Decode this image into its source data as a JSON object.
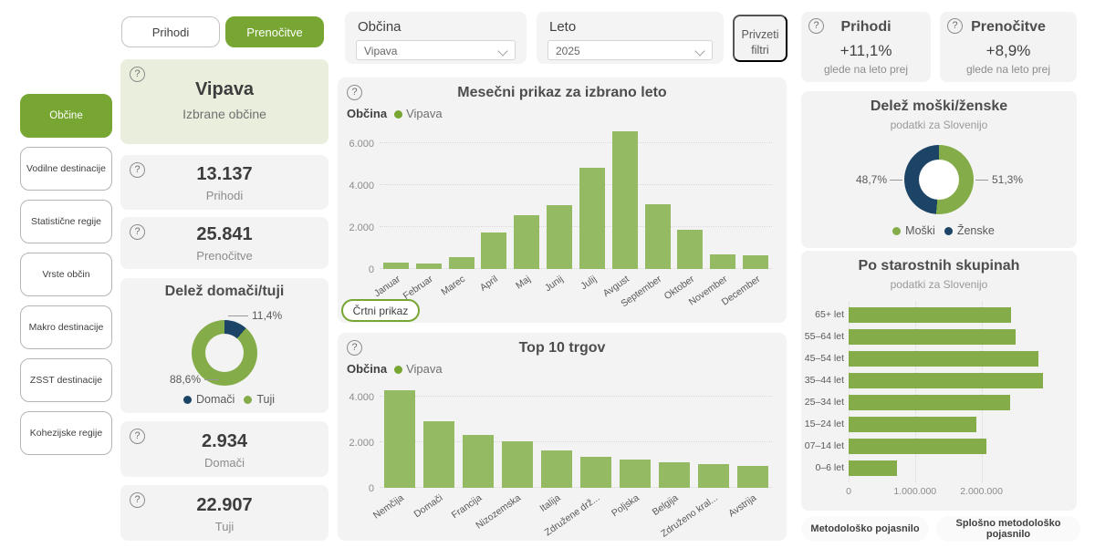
{
  "icons": {
    "help": "?"
  },
  "colors": {
    "accent_green": "#77a633",
    "bar_green": "#95ba64",
    "donut_green": "#84ad49",
    "navy": "#1c4466",
    "card_bg": "#f3f3f3",
    "selected_card_bg": "#e9efdc"
  },
  "toggle": {
    "prihodi": "Prihodi",
    "prenocitve": "Prenočitve"
  },
  "sidebar": {
    "items": [
      {
        "label": "Občine",
        "active": true
      },
      {
        "label": "Vodilne destinacije",
        "active": false
      },
      {
        "label": "Statistične regije",
        "active": false
      },
      {
        "label": "Vrste občin",
        "active": false
      },
      {
        "label": "Makro destinacije",
        "active": false
      },
      {
        "label": "ZSST destinacije",
        "active": false
      },
      {
        "label": "Kohezijske regije",
        "active": false
      }
    ]
  },
  "kpi": {
    "selected": {
      "title": "Vipava",
      "subtitle": "Izbrane občine"
    },
    "arrivals": {
      "value": "13.137",
      "label": "Prihodi"
    },
    "nights": {
      "value": "25.841",
      "label": "Prenočitve"
    },
    "domestic": {
      "value": "2.934",
      "label": "Domači"
    },
    "foreign": {
      "value": "22.907",
      "label": "Tuji"
    }
  },
  "filters": {
    "obcina": {
      "label": "Občina",
      "value": "Vipava"
    },
    "leto": {
      "label": "Leto",
      "value": "2025"
    },
    "privzeti": "Privzeti filtri"
  },
  "buttons": {
    "crtni": "Črtni prikaz",
    "metodolosko": "Metodološko pojasnilo",
    "splosno": "Splošno metodološko pojasnilo"
  },
  "right_kpis": [
    {
      "title": "Prihodi",
      "value": "+11,1%",
      "note": "glede na leto prej"
    },
    {
      "title": "Prenočitve",
      "value": "+8,9%",
      "note": "glede na leto prej"
    }
  ],
  "chart_data": [
    {
      "id": "monthly",
      "type": "bar",
      "title": "Mesečni prikaz za izbrano leto",
      "legend_label": "Občina",
      "series_name": "Vipava",
      "legend_position": "top-left",
      "categories": [
        "Januar",
        "Februar",
        "Marec",
        "April",
        "Maj",
        "Junij",
        "Julij",
        "Avgust",
        "September",
        "Oktober",
        "November",
        "December"
      ],
      "values": [
        300,
        280,
        550,
        1750,
        2550,
        3050,
        4800,
        6550,
        3100,
        1850,
        700,
        650
      ],
      "ylim": [
        0,
        6600
      ],
      "grid": "dotted-horizontal",
      "yticks": [
        {
          "v": 0,
          "label": "0"
        },
        {
          "v": 2000,
          "label": "2.000"
        },
        {
          "v": 4000,
          "label": "4.000"
        },
        {
          "v": 6000,
          "label": "6.000"
        }
      ]
    },
    {
      "id": "top10",
      "type": "bar",
      "title": "Top 10 trgov",
      "legend_label": "Občina",
      "series_name": "Vipava",
      "legend_position": "top-left",
      "categories": [
        "Nemčija",
        "Domači",
        "Francija",
        "Nizozemska",
        "Italija",
        "Združene drž...",
        "Poljska",
        "Belgija",
        "Združeno kral...",
        "Avstrija"
      ],
      "values": [
        4300,
        2950,
        2350,
        2030,
        1630,
        1350,
        1230,
        1130,
        1030,
        950
      ],
      "ylim": [
        0,
        4500
      ],
      "grid": "dotted-horizontal",
      "yticks": [
        {
          "v": 0,
          "label": "0"
        },
        {
          "v": 2000,
          "label": "2.000"
        },
        {
          "v": 4000,
          "label": "4.000"
        }
      ]
    },
    {
      "id": "domestic_foreign",
      "type": "pie",
      "title": "Delež domači/tuji",
      "slices": [
        {
          "label": "Domači",
          "pct": 11.4,
          "color": "#1c4466"
        },
        {
          "label": "Tuji",
          "pct": 88.6,
          "color": "#84ad49"
        }
      ],
      "callouts": {
        "right": "11,4%",
        "left": "88,6%"
      }
    },
    {
      "id": "gender",
      "type": "pie",
      "title": "Delež moški/ženske",
      "subtitle": "podatki za Slovenijo",
      "slices": [
        {
          "label": "Moški",
          "pct": 51.3,
          "color": "#84ad49"
        },
        {
          "label": "Ženske",
          "pct": 48.7,
          "color": "#1c4466"
        }
      ],
      "callouts": {
        "left": "48,7%",
        "right": "51,3%"
      }
    },
    {
      "id": "age_groups",
      "type": "bar",
      "orientation": "horizontal",
      "title": "Po starostnih skupinah",
      "subtitle": "podatki za Slovenijo",
      "categories": [
        "65+ let",
        "55–64 let",
        "45–54 let",
        "35–44 let",
        "25–34 let",
        "15–24 let",
        "07–14 let",
        "0–6 let"
      ],
      "values": [
        2450000,
        2520000,
        2860000,
        2930000,
        2430000,
        1930000,
        2070000,
        730000
      ],
      "xlim": [
        0,
        3050000
      ],
      "grid": "dotted-vertical",
      "xticks": [
        {
          "v": 0,
          "label": "0"
        },
        {
          "v": 1000000,
          "label": "1.000.000"
        },
        {
          "v": 2000000,
          "label": "2.000.000"
        }
      ]
    }
  ]
}
